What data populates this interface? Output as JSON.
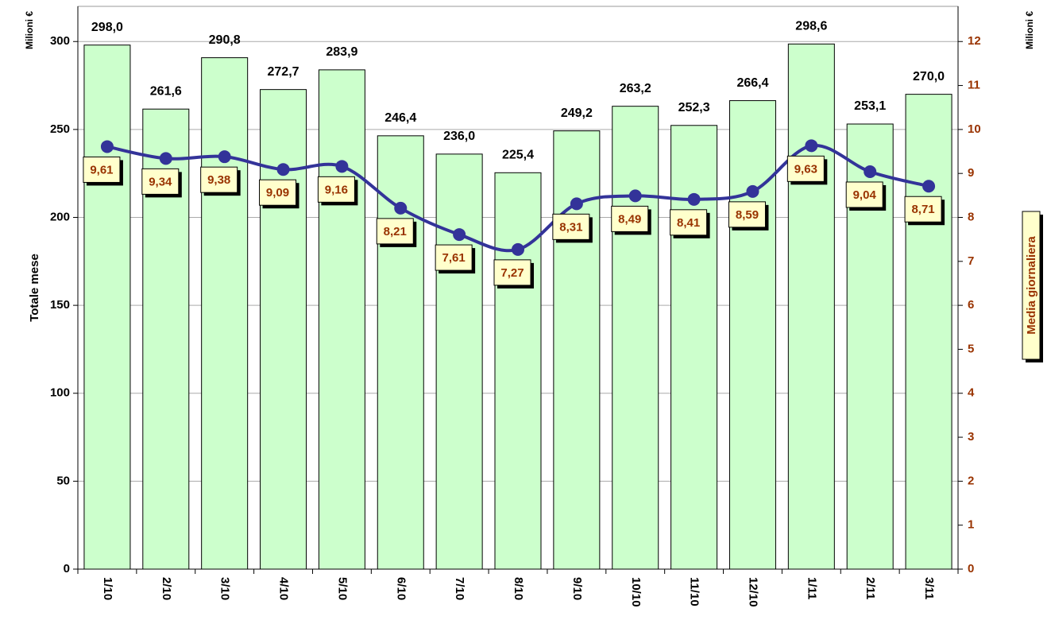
{
  "chart_data": {
    "type": "bar",
    "categories": [
      "1/10",
      "2/10",
      "3/10",
      "4/10",
      "5/10",
      "6/10",
      "7/10",
      "8/10",
      "9/10",
      "10/10",
      "11/10",
      "12/10",
      "1/11",
      "2/11",
      "3/11"
    ],
    "ylabel": "Totale mese",
    "y_unit": "Milioni €",
    "y2label": "Media giornaliera",
    "y2_unit": "Milioni €",
    "ylim": [
      0,
      320
    ],
    "yticks": [
      0,
      50,
      100,
      150,
      200,
      250,
      300
    ],
    "y2lim": [
      0,
      12.8
    ],
    "y2ticks": [
      0,
      1,
      2,
      3,
      4,
      5,
      6,
      7,
      8,
      9,
      10,
      11,
      12
    ],
    "grid": true,
    "series": [
      {
        "type": "bar",
        "color": "#ccffcc",
        "values": [
          298.0,
          261.6,
          290.8,
          272.7,
          283.9,
          246.4,
          236.0,
          225.4,
          249.2,
          263.2,
          252.3,
          266.4,
          298.6,
          253.1,
          270.0
        ],
        "value_labels": [
          "298,0",
          "261,6",
          "290,8",
          "272,7",
          "283,9",
          "246,4",
          "236,0",
          "225,4",
          "249,2",
          "263,2",
          "252,3",
          "266,4",
          "298,6",
          "253,1",
          "270,0"
        ]
      },
      {
        "type": "line",
        "axis": "y2",
        "color": "#333399",
        "values": [
          9.61,
          9.34,
          9.38,
          9.09,
          9.16,
          8.21,
          7.61,
          7.27,
          8.31,
          8.49,
          8.41,
          8.59,
          9.63,
          9.04,
          8.71
        ],
        "value_labels": [
          "9,61",
          "9,34",
          "9,38",
          "9,09",
          "9,16",
          "8,21",
          "7,61",
          "7,27",
          "8,31",
          "8,49",
          "8,41",
          "8,59",
          "9,63",
          "9,04",
          "8,71"
        ]
      }
    ]
  }
}
